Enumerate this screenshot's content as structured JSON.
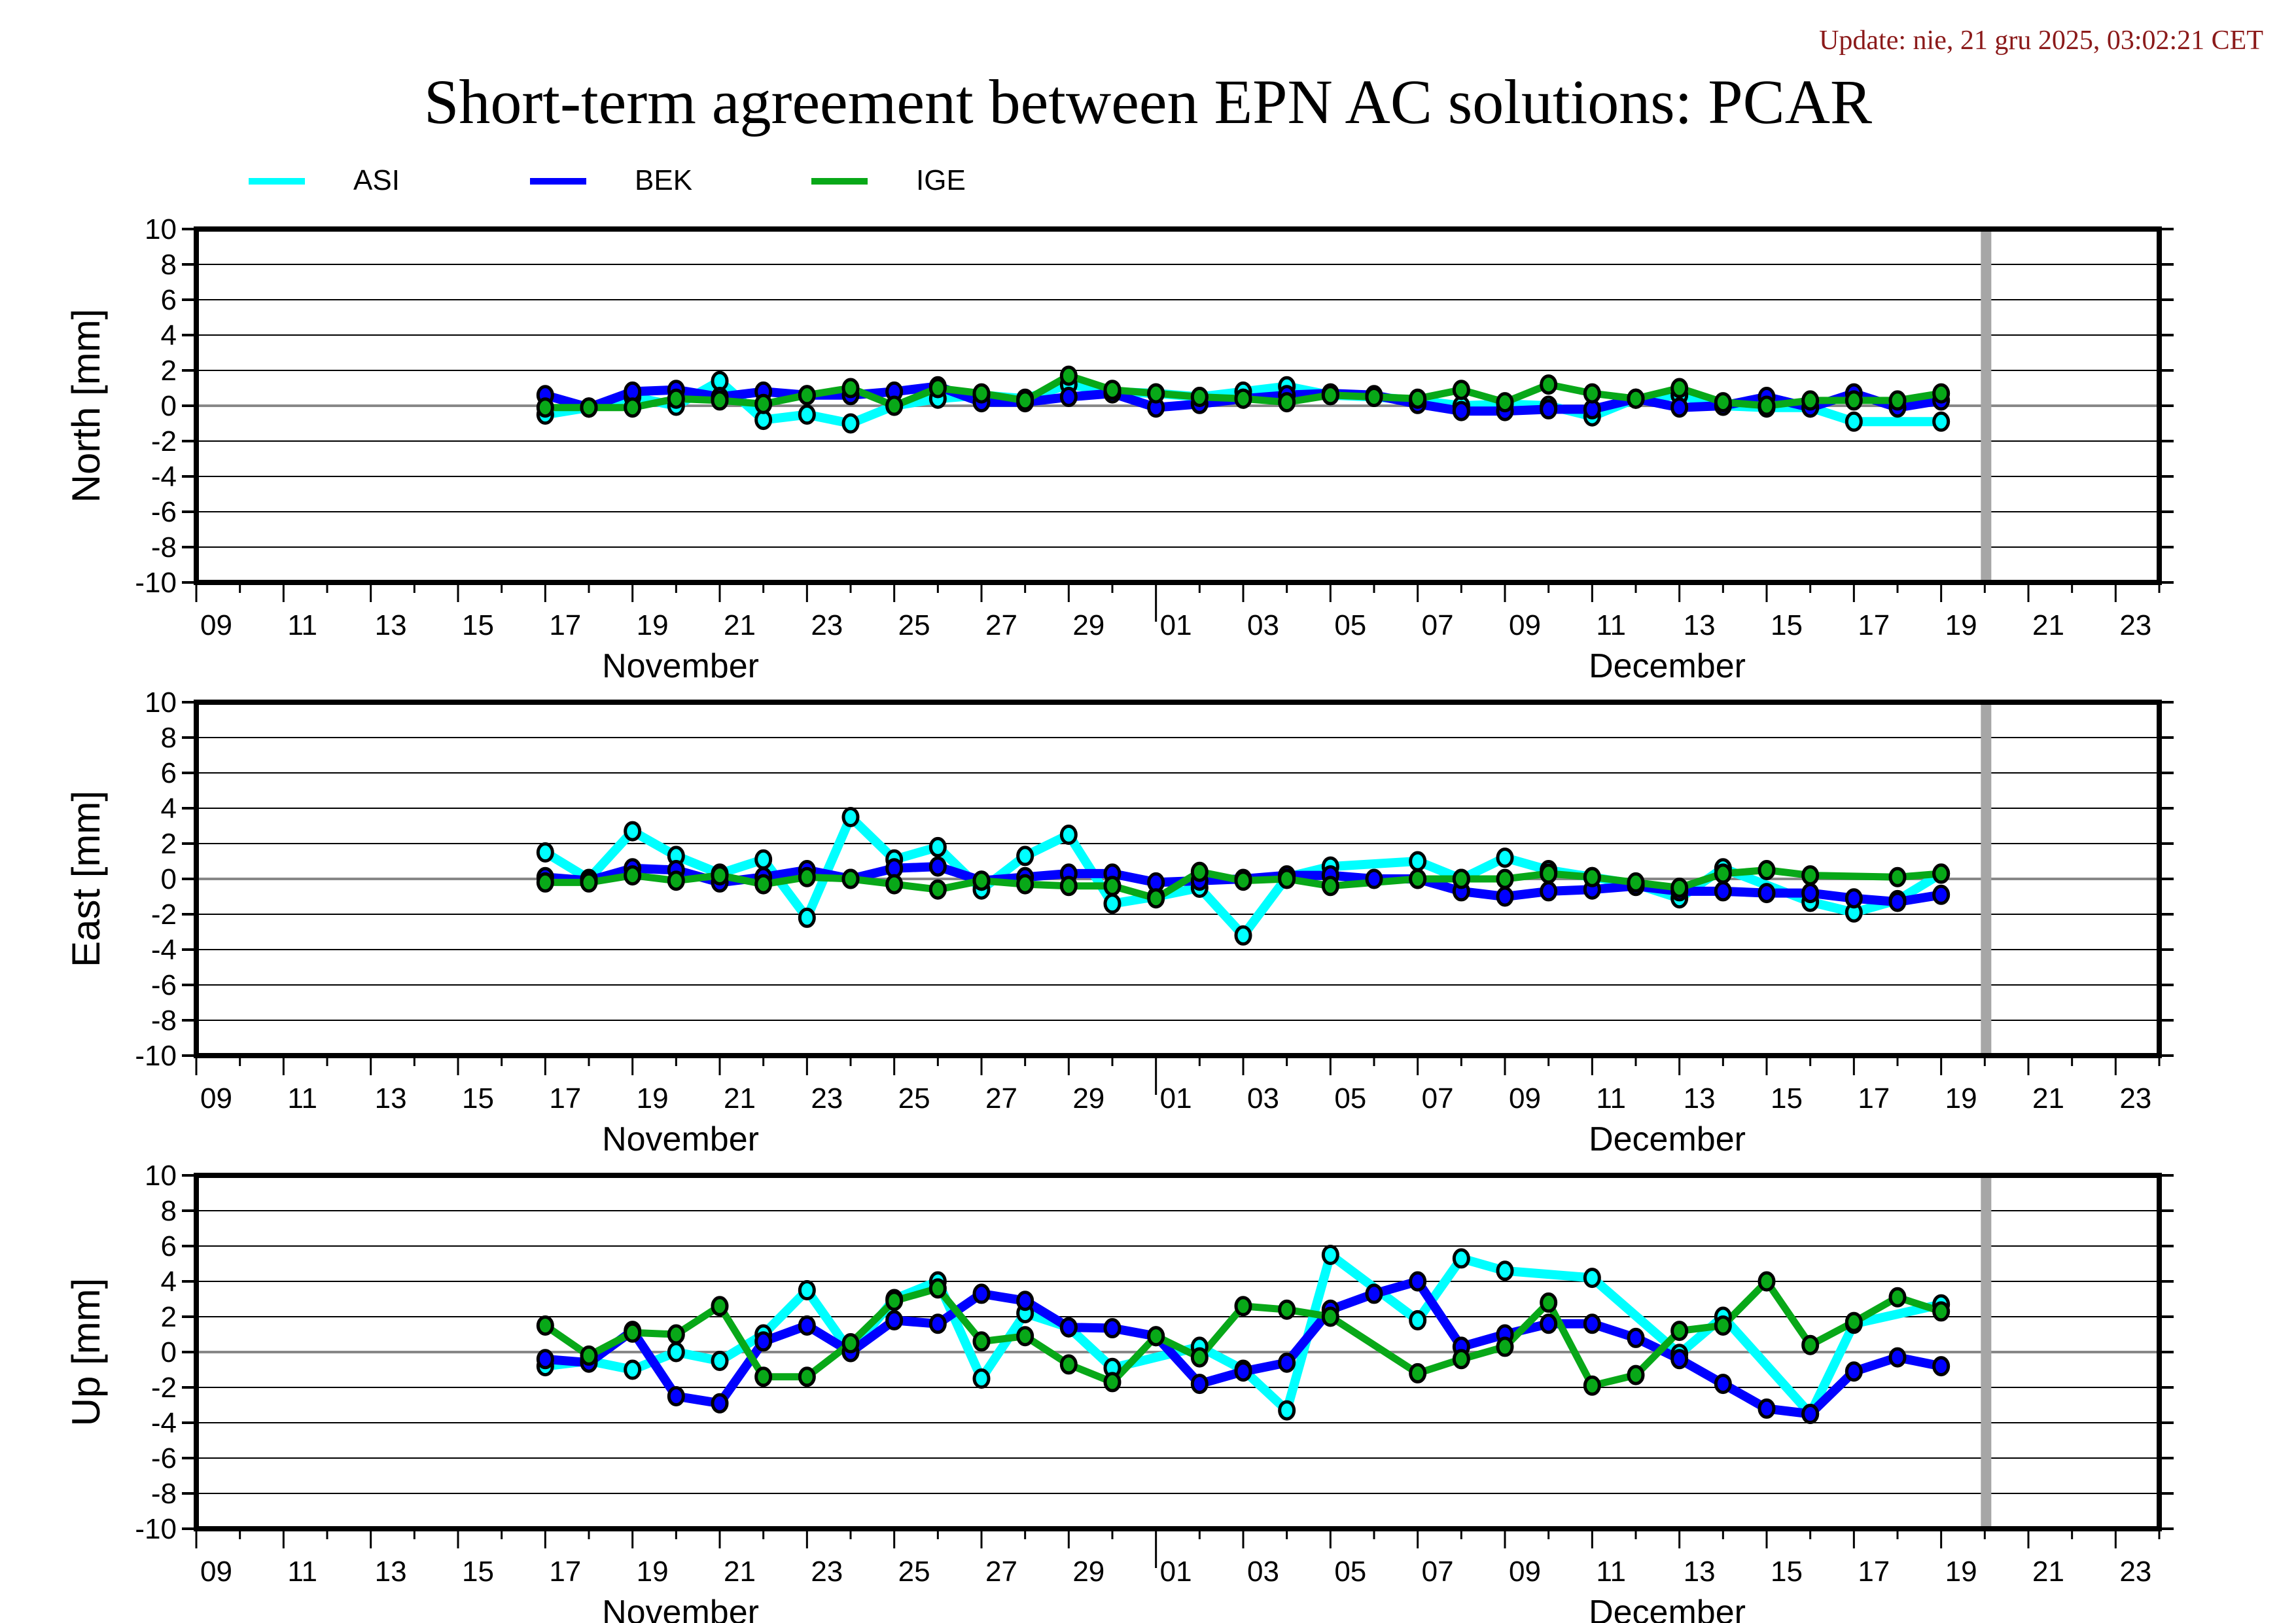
{
  "header": {
    "update": "Update: nie, 21 gru 2025, 03:02:21 CET",
    "title": "Short-term agreement between EPN AC solutions: PCAR"
  },
  "legend": [
    {
      "name": "ASI",
      "color": "#00ffff"
    },
    {
      "name": "BEK",
      "color": "#0000ff"
    },
    {
      "name": "IGE",
      "color": "#08a818"
    }
  ],
  "chart_data": [
    {
      "type": "line",
      "ylabel": "North [mm]",
      "ylim": [
        -10,
        10
      ],
      "yticks": [
        "10",
        "8",
        "6",
        "4",
        "2",
        "0",
        "-2",
        "-4",
        "-6",
        "-8",
        "-10"
      ],
      "xrange_days": [
        "Nov 09",
        "Dec 24"
      ],
      "xtick_labels": [
        "09",
        "11",
        "13",
        "15",
        "17",
        "19",
        "21",
        "23",
        "25",
        "27",
        "29",
        "01",
        "03",
        "05",
        "07",
        "09",
        "11",
        "13",
        "15",
        "17",
        "19",
        "21",
        "23"
      ],
      "month_labels": [
        "November",
        "December"
      ],
      "x": [
        "Nov 17",
        "Nov 18",
        "Nov 19",
        "Nov 20",
        "Nov 21",
        "Nov 22",
        "Nov 23",
        "Nov 24",
        "Nov 25",
        "Nov 26",
        "Nov 27",
        "Nov 28",
        "Nov 29",
        "Nov 30",
        "Dec 01",
        "Dec 02",
        "Dec 03",
        "Dec 04",
        "Dec 05",
        "Dec 06",
        "Dec 07",
        "Dec 08",
        "Dec 09",
        "Dec 10",
        "Dec 11",
        "Dec 12",
        "Dec 13",
        "Dec 14",
        "Dec 15",
        "Dec 16",
        "Dec 17",
        "Dec 18",
        "Dec 19"
      ],
      "series": [
        {
          "name": "ASI",
          "values": [
            -0.5,
            -0.1,
            0.5,
            0.0,
            1.4,
            -0.8,
            -0.5,
            -1.0,
            0.0,
            0.4,
            0.6,
            0.4,
            1.2,
            0.8,
            0.7,
            0.5,
            0.8,
            1.1,
            0.6,
            0.5,
            0.3,
            0.0,
            0.1,
            0.0,
            -0.6,
            0.4,
            0.6,
            0.0,
            -0.1,
            -0.1,
            -0.9,
            null,
            -0.9
          ]
        },
        {
          "name": "BEK",
          "values": [
            0.6,
            -0.1,
            0.8,
            0.9,
            0.5,
            0.8,
            0.6,
            0.6,
            0.8,
            1.1,
            0.2,
            0.2,
            0.5,
            0.7,
            -0.1,
            0.1,
            0.4,
            0.6,
            0.7,
            0.6,
            0.1,
            -0.3,
            -0.3,
            -0.2,
            -0.2,
            0.4,
            -0.1,
            0.0,
            0.5,
            -0.1,
            0.7,
            -0.1,
            0.3
          ]
        },
        {
          "name": "IGE",
          "values": [
            -0.1,
            -0.1,
            -0.1,
            0.4,
            0.3,
            0.1,
            0.6,
            1.0,
            0.0,
            1.0,
            0.7,
            0.3,
            1.7,
            0.9,
            0.7,
            0.5,
            0.4,
            0.2,
            0.6,
            0.5,
            0.4,
            0.9,
            0.2,
            1.2,
            0.7,
            0.4,
            1.0,
            0.2,
            0.0,
            0.3,
            0.3,
            0.3,
            0.7
          ]
        }
      ],
      "current_day_marker": "Dec 20",
      "grid": true
    },
    {
      "type": "line",
      "ylabel": "East [mm]",
      "ylim": [
        -10,
        10
      ],
      "yticks": [
        "10",
        "8",
        "6",
        "4",
        "2",
        "0",
        "-2",
        "-4",
        "-6",
        "-8",
        "-10"
      ],
      "xrange_days": [
        "Nov 09",
        "Dec 24"
      ],
      "xtick_labels": [
        "09",
        "11",
        "13",
        "15",
        "17",
        "19",
        "21",
        "23",
        "25",
        "27",
        "29",
        "01",
        "03",
        "05",
        "07",
        "09",
        "11",
        "13",
        "15",
        "17",
        "19",
        "21",
        "23"
      ],
      "month_labels": [
        "November",
        "December"
      ],
      "x": [
        "Nov 17",
        "Nov 18",
        "Nov 19",
        "Nov 20",
        "Nov 21",
        "Nov 22",
        "Nov 23",
        "Nov 24",
        "Nov 25",
        "Nov 26",
        "Nov 27",
        "Nov 28",
        "Nov 29",
        "Nov 30",
        "Dec 01",
        "Dec 02",
        "Dec 03",
        "Dec 04",
        "Dec 05",
        "Dec 06",
        "Dec 07",
        "Dec 08",
        "Dec 09",
        "Dec 10",
        "Dec 11",
        "Dec 12",
        "Dec 13",
        "Dec 14",
        "Dec 15",
        "Dec 16",
        "Dec 17",
        "Dec 18",
        "Dec 19"
      ],
      "series": [
        {
          "name": "ASI",
          "values": [
            1.5,
            0.0,
            2.7,
            1.3,
            0.3,
            1.1,
            -2.2,
            3.5,
            1.1,
            1.8,
            -0.6,
            1.3,
            2.5,
            -1.4,
            -1.0,
            -0.5,
            -3.2,
            0.1,
            0.7,
            null,
            1.0,
            0.0,
            1.2,
            0.5,
            0.1,
            -0.3,
            -1.1,
            0.6,
            null,
            -1.3,
            -1.9,
            -1.2,
            0.3
          ]
        },
        {
          "name": "BEK",
          "values": [
            0.1,
            -0.1,
            0.6,
            0.5,
            -0.2,
            0.1,
            0.5,
            0.0,
            0.6,
            0.7,
            -0.1,
            0.1,
            0.3,
            0.3,
            -0.2,
            -0.1,
            0.0,
            0.2,
            0.2,
            0.0,
            0.0,
            -0.7,
            -1.0,
            -0.7,
            -0.6,
            -0.4,
            -0.7,
            -0.7,
            -0.8,
            -0.8,
            -1.1,
            -1.3,
            -0.9
          ]
        },
        {
          "name": "IGE",
          "values": [
            -0.2,
            -0.2,
            0.2,
            -0.1,
            0.2,
            -0.3,
            0.1,
            0.0,
            -0.3,
            -0.6,
            -0.1,
            -0.3,
            -0.4,
            -0.4,
            -1.1,
            0.4,
            -0.1,
            0.0,
            -0.4,
            null,
            0.0,
            0.0,
            0.0,
            0.3,
            0.1,
            -0.2,
            -0.5,
            0.3,
            0.5,
            0.2,
            null,
            0.1,
            0.3
          ]
        }
      ],
      "current_day_marker": "Dec 20",
      "grid": true
    },
    {
      "type": "line",
      "ylabel": "Up [mm]",
      "ylim": [
        -10,
        10
      ],
      "yticks": [
        "10",
        "8",
        "6",
        "4",
        "2",
        "0",
        "-2",
        "-4",
        "-6",
        "-8",
        "-10"
      ],
      "xrange_days": [
        "Nov 09",
        "Dec 24"
      ],
      "xtick_labels": [
        "09",
        "11",
        "13",
        "15",
        "17",
        "19",
        "21",
        "23",
        "25",
        "27",
        "29",
        "01",
        "03",
        "05",
        "07",
        "09",
        "11",
        "13",
        "15",
        "17",
        "19",
        "21",
        "23"
      ],
      "month_labels": [
        "November",
        "December"
      ],
      "x": [
        "Nov 17",
        "Nov 18",
        "Nov 19",
        "Nov 20",
        "Nov 21",
        "Nov 22",
        "Nov 23",
        "Nov 24",
        "Nov 25",
        "Nov 26",
        "Nov 27",
        "Nov 28",
        "Nov 29",
        "Nov 30",
        "Dec 01",
        "Dec 02",
        "Dec 03",
        "Dec 04",
        "Dec 05",
        "Dec 06",
        "Dec 07",
        "Dec 08",
        "Dec 09",
        "Dec 10",
        "Dec 11",
        "Dec 12",
        "Dec 13",
        "Dec 14",
        "Dec 15",
        "Dec 16",
        "Dec 17",
        "Dec 18",
        "Dec 19"
      ],
      "series": [
        {
          "name": "ASI",
          "values": [
            -0.8,
            -0.5,
            -1.0,
            0.0,
            -0.5,
            1.0,
            3.5,
            0.0,
            3.0,
            4.0,
            -1.5,
            2.2,
            1.4,
            -0.9,
            null,
            0.3,
            -1.0,
            -3.3,
            5.5,
            null,
            1.8,
            5.3,
            4.6,
            null,
            4.2,
            null,
            -0.1,
            2.0,
            null,
            -3.5,
            1.6,
            null,
            2.7
          ]
        },
        {
          "name": "BEK",
          "values": [
            -0.4,
            -0.6,
            1.2,
            -2.5,
            -2.9,
            0.6,
            1.5,
            0.0,
            1.8,
            1.6,
            3.3,
            2.9,
            1.4,
            1.35,
            0.9,
            -1.8,
            -1.1,
            -0.6,
            2.4,
            3.3,
            4.0,
            0.3,
            1.0,
            1.6,
            1.6,
            0.8,
            -0.4,
            -1.8,
            -3.2,
            -3.5,
            -1.1,
            -0.3,
            -0.8
          ]
        },
        {
          "name": "IGE",
          "values": [
            1.5,
            -0.2,
            1.1,
            1.0,
            2.6,
            -1.4,
            -1.4,
            0.5,
            2.9,
            3.6,
            0.6,
            0.9,
            -0.7,
            -1.7,
            0.9,
            -0.3,
            2.6,
            2.4,
            2.0,
            null,
            -1.2,
            -0.4,
            0.3,
            2.8,
            -1.9,
            -1.3,
            1.2,
            1.5,
            4.0,
            0.4,
            1.7,
            3.1,
            2.3
          ]
        }
      ],
      "current_day_marker": "Dec 20",
      "grid": true
    }
  ]
}
